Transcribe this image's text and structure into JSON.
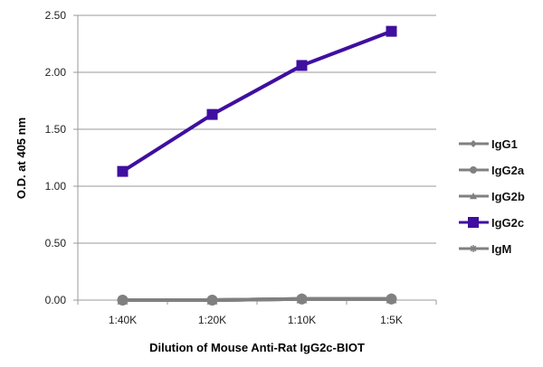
{
  "chart_data": {
    "type": "line",
    "title": "",
    "xlabel": "Dilution of Mouse Anti-Rat IgG2c-BIOT",
    "ylabel": "O.D. at 405 nm",
    "categories": [
      "1:40K",
      "1:20K",
      "1:10K",
      "1:5K"
    ],
    "ylim": [
      0,
      2.5
    ],
    "yticks": [
      "0.00",
      "0.50",
      "1.00",
      "1.50",
      "2.00",
      "2.50"
    ],
    "grid": true,
    "legend_position": "right",
    "series": [
      {
        "name": "IgG1",
        "values": [
          0.0,
          0.0,
          0.01,
          0.01
        ],
        "color": "#808080",
        "marker": "diamond"
      },
      {
        "name": "IgG2a",
        "values": [
          0.0,
          0.0,
          0.01,
          0.01
        ],
        "color": "#808080",
        "marker": "circle"
      },
      {
        "name": "IgG2b",
        "values": [
          0.0,
          0.0,
          0.01,
          0.01
        ],
        "color": "#808080",
        "marker": "triangle"
      },
      {
        "name": "IgG2c",
        "values": [
          1.13,
          1.63,
          2.06,
          2.36
        ],
        "color": "#3f0f9f",
        "marker": "square"
      },
      {
        "name": "IgM",
        "values": [
          0.0,
          0.0,
          0.01,
          0.01
        ],
        "color": "#808080",
        "marker": "star"
      }
    ]
  }
}
